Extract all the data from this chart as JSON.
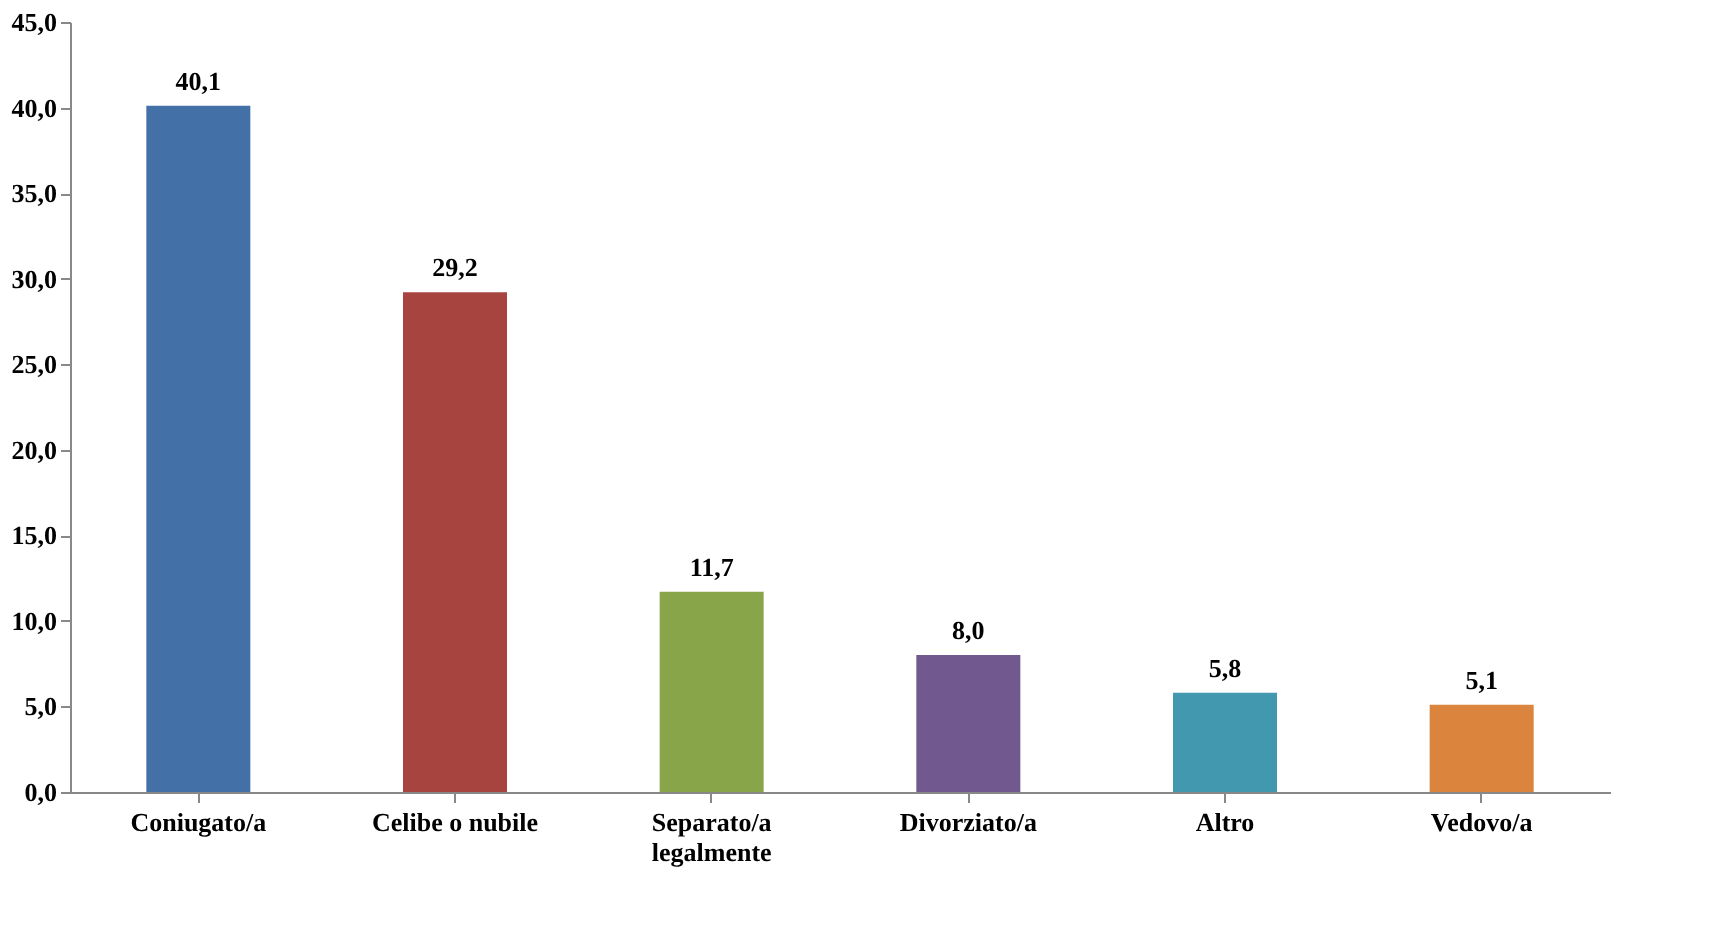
{
  "chart_data": {
    "type": "bar",
    "categories": [
      "Coniugato/a",
      "Celibe o nubile",
      "Separato/a legalmente",
      "Divorziato/a",
      "Altro",
      "Vedovo/a"
    ],
    "values": [
      40.1,
      29.2,
      11.7,
      8.0,
      5.8,
      5.1
    ],
    "colors": [
      "#4470a8",
      "#a8443f",
      "#88a54a",
      "#71588f",
      "#4198af",
      "#db843d"
    ],
    "value_labels": [
      "40,1",
      "29,2",
      "11,7",
      "8,0",
      "5,8",
      "5,1"
    ],
    "ylim": [
      0,
      45
    ],
    "yticks": [
      {
        "value": 0,
        "label": "0,0"
      },
      {
        "value": 5,
        "label": "5,0"
      },
      {
        "value": 10,
        "label": "10,0"
      },
      {
        "value": 15,
        "label": "15,0"
      },
      {
        "value": 20,
        "label": "20,0"
      },
      {
        "value": 25,
        "label": "25,0"
      },
      {
        "value": 30,
        "label": "30,0"
      },
      {
        "value": 35,
        "label": "35,0"
      },
      {
        "value": 40,
        "label": "40,0"
      },
      {
        "value": 45,
        "label": "45,0"
      }
    ],
    "grid": false
  }
}
